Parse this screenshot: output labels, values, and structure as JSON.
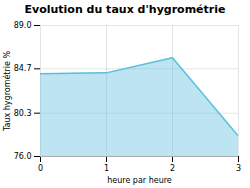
{
  "chart_data": {
    "type": "area",
    "title": "Evolution du taux d'hygrométrie",
    "xlabel": "heure par heure",
    "ylabel": "Taux hygrométrie %",
    "x": [
      0,
      1,
      2,
      3
    ],
    "values": [
      84.2,
      84.3,
      85.8,
      78.0
    ],
    "color": "#5bbfdb",
    "xlim": [
      0,
      3
    ],
    "xticks": [
      0,
      1,
      2,
      3
    ],
    "ylim": [
      76.0,
      89.0
    ],
    "yticks": [
      {
        "value": 76.0,
        "label": "76.0"
      },
      80.3,
      84.7,
      {
        "value": 89.0,
        "label": "89.0"
      }
    ],
    "grid": true
  }
}
